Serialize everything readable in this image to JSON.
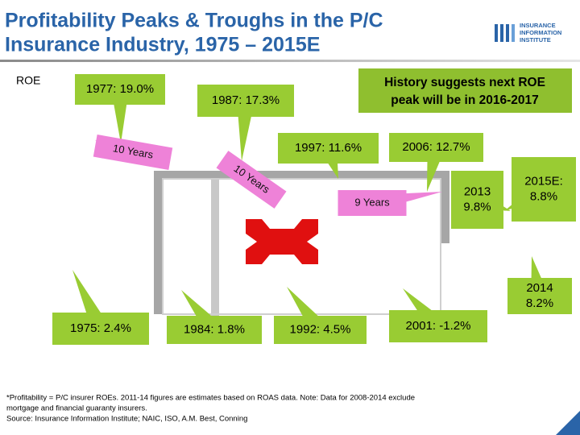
{
  "header": {
    "title_lines": [
      "Profitability Peaks & Troughs in the P/C",
      "Insurance Industry, 1975 – 2015E"
    ],
    "logo": [
      "INSURANCE",
      "INFORMATION",
      "INSTITUTE"
    ]
  },
  "axis_label": "ROE",
  "note": [
    "History suggests next ROE",
    "peak will be in 2016-2017"
  ],
  "callouts": [
    [
      "1977: 19.0%"
    ],
    [
      "1987: 17.3%"
    ],
    [
      "1997: 11.6%"
    ],
    [
      "2006: 12.7%"
    ],
    [
      "2013",
      "9.8%"
    ],
    [
      "2015E:",
      "8.8%"
    ],
    [
      "2014",
      "8.2%"
    ],
    [
      "1975: 2.4%"
    ],
    [
      "1984: 1.8%"
    ],
    [
      "1992: 4.5%"
    ],
    [
      "2001: -1.2%"
    ]
  ],
  "intervals": [
    "10 Years",
    "10 Years",
    "9 Years"
  ],
  "footnote": [
    "*Profitability = P/C insurer ROEs. 2011-14 figures are estimates based on ROAS data. Note: Data for 2008-2014 exclude",
    "mortgage and financial guaranty insurers.",
    "Source: Insurance Information Institute; NAIC, ISO, A.M. Best, Conning"
  ]
}
